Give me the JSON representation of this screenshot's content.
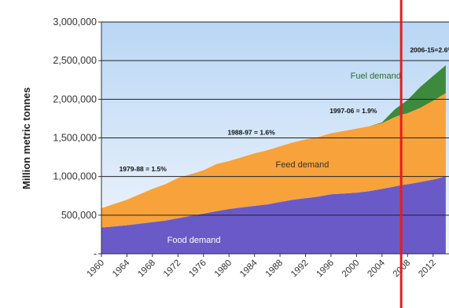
{
  "chart_data": {
    "type": "area",
    "stacked": true,
    "xlabel": "",
    "ylabel": "Million metric tonnes",
    "ylim": [
      0,
      3000000
    ],
    "xlim": [
      1960,
      2014.5
    ],
    "y_tick_labels": [
      "-",
      "500,000",
      "1,000,000",
      "1,500,000",
      "2,000,000",
      "2,500,000",
      "3,000,000"
    ],
    "x_tick_labels": [
      "1960",
      "1964",
      "1968",
      "1972",
      "1976",
      "1980",
      "1984",
      "1988",
      "1992",
      "1996",
      "2000",
      "2004",
      "2008",
      "2012"
    ],
    "grid": "horizontal",
    "x": [
      1960,
      1962,
      1964,
      1966,
      1968,
      1970,
      1972,
      1974,
      1976,
      1978,
      1980,
      1982,
      1984,
      1986,
      1988,
      1990,
      1992,
      1994,
      1996,
      1998,
      2000,
      2002,
      2004,
      2006,
      2007,
      2008,
      2010,
      2012,
      2014
    ],
    "series": [
      {
        "name": "Food demand",
        "color": "#6a5ac8",
        "values": [
          340000,
          355000,
          370000,
          390000,
          410000,
          430000,
          460000,
          490000,
          520000,
          550000,
          580000,
          600000,
          620000,
          640000,
          670000,
          700000,
          720000,
          740000,
          770000,
          780000,
          790000,
          810000,
          840000,
          870000,
          890000,
          900000,
          930000,
          960000,
          1000000
        ]
      },
      {
        "name": "Feed demand",
        "color": "#f7a23b",
        "values": [
          250000,
          290000,
          330000,
          380000,
          430000,
          470000,
          520000,
          540000,
          560000,
          610000,
          620000,
          650000,
          680000,
          700000,
          720000,
          740000,
          760000,
          770000,
          790000,
          810000,
          830000,
          840000,
          850000,
          900000,
          910000,
          920000,
          960000,
          1020000,
          1080000
        ]
      },
      {
        "name": "Fuel demand",
        "color": "#3d8a3e",
        "values": [
          0,
          0,
          0,
          0,
          0,
          0,
          0,
          0,
          0,
          0,
          0,
          0,
          0,
          0,
          0,
          0,
          0,
          0,
          0,
          0,
          0,
          0,
          10000,
          100000,
          130000,
          170000,
          270000,
          320000,
          360000
        ]
      }
    ],
    "series_labels": [
      {
        "text": "Food demand",
        "x": 1974.5,
        "y": 140000,
        "color": "#ffffff"
      },
      {
        "text": "Feed demand",
        "x": 1991.5,
        "y": 1120000,
        "color": "#333333"
      },
      {
        "text": "Fuel demand",
        "x": 2003,
        "y": 2270000,
        "color": "#2e6b2e"
      }
    ],
    "annotations": [
      {
        "text": "1979-88 = 1.5%",
        "x": 1966.5,
        "y": 1070000
      },
      {
        "text": "1988-97 = 1.6%",
        "x": 1983.5,
        "y": 1540000
      },
      {
        "text": "1997-06 = 1.9%",
        "x": 1999.5,
        "y": 1820000
      },
      {
        "text": "2006-15=2.6%",
        "x": 2011.8,
        "y": 2610000
      }
    ],
    "vertical_marker": {
      "x": 2007,
      "color": "#e41e1e"
    },
    "colors": {
      "background_top": "#b9d6f5",
      "background_bottom": "#f1f6fc",
      "gridline": "#222222",
      "axis": "#333333",
      "marker": "#e41e1e"
    }
  }
}
